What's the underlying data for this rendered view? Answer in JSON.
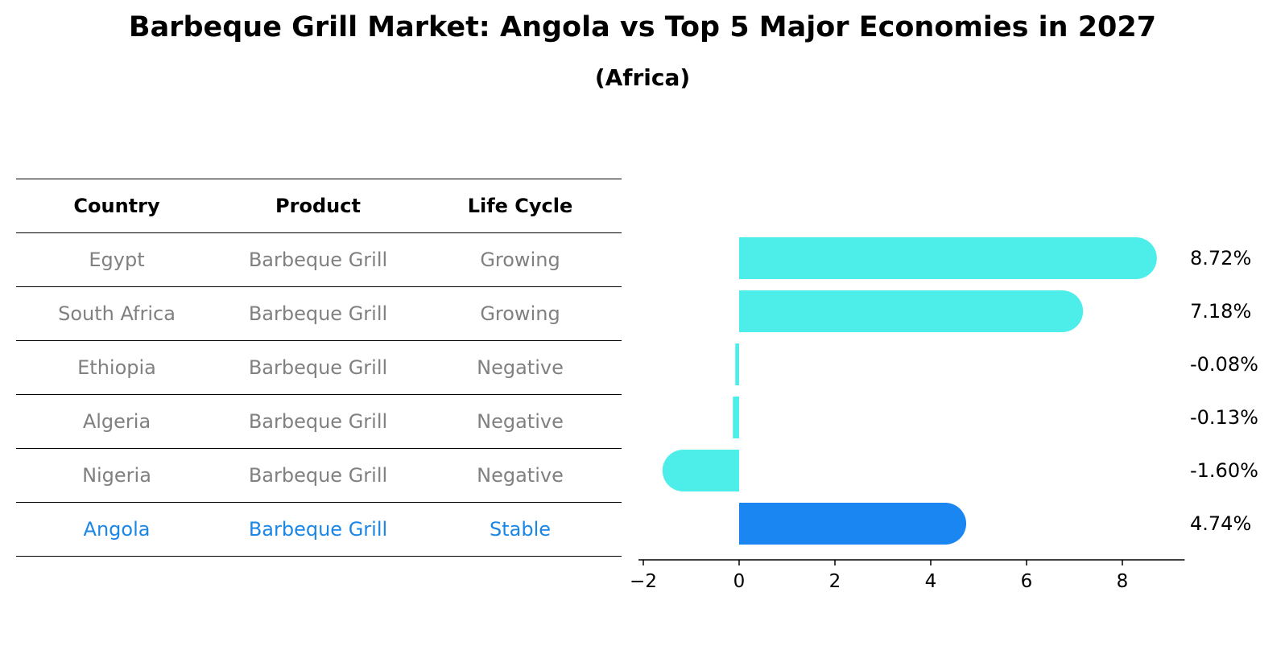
{
  "title": "Barbeque Grill Market: Angola vs Top 5 Major Economies in 2027",
  "subtitle": "(Africa)",
  "table": {
    "headers": [
      "Country",
      "Product",
      "Life Cycle"
    ],
    "rows": [
      [
        "Egypt",
        "Barbeque Grill",
        "Growing"
      ],
      [
        "South Africa",
        "Barbeque Grill",
        "Growing"
      ],
      [
        "Ethiopia",
        "Barbeque Grill",
        "Negative"
      ],
      [
        "Algeria",
        "Barbeque Grill",
        "Negative"
      ],
      [
        "Nigeria",
        "Barbeque Grill",
        "Negative"
      ],
      [
        "Angola",
        "Barbeque Grill",
        "Stable"
      ]
    ],
    "highlight_row": 5
  },
  "colors": {
    "bar": "#4deeea",
    "highlight": "#1a86f2",
    "table_text": "#808080",
    "highlight_text": "#1a86e6"
  },
  "chart_data": {
    "type": "bar",
    "orientation": "horizontal",
    "categories": [
      "Egypt",
      "South Africa",
      "Ethiopia",
      "Algeria",
      "Nigeria",
      "Angola"
    ],
    "values": [
      8.72,
      7.18,
      -0.08,
      -0.13,
      -1.6,
      4.74
    ],
    "value_labels": [
      "8.72%",
      "7.18%",
      "-0.08%",
      "-0.13%",
      "-1.60%",
      "4.74%"
    ],
    "highlight_index": 5,
    "xlim": [
      -2.1,
      9.3
    ],
    "xticks": [
      -2,
      0,
      2,
      4,
      6,
      8
    ],
    "xtick_labels": [
      "−2",
      "0",
      "2",
      "4",
      "6",
      "8"
    ],
    "grid": false
  }
}
